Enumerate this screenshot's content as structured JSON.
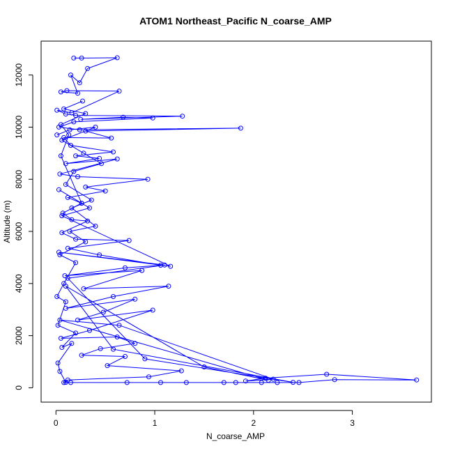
{
  "chart_data": {
    "type": "line",
    "title": "ATOM1 Northeast_Pacific N_coarse_AMP",
    "xlabel": "N_coarse_AMP",
    "ylabel": "Altitude (m)",
    "xlim": [
      -0.15,
      3.8
    ],
    "ylim": [
      -550,
      13300
    ],
    "x_ticks": [
      0,
      1,
      2,
      3
    ],
    "x_tick_labels": [
      "0",
      "1",
      "2",
      "3"
    ],
    "y_ticks": [
      0,
      2000,
      4000,
      6000,
      8000,
      10000,
      12000
    ],
    "y_tick_labels": [
      "0",
      "2000",
      "4000",
      "6000",
      "8000",
      "10000",
      "12000"
    ],
    "grid": false,
    "legend": "none",
    "colors": {
      "series": "#0000ff",
      "frame": "#000000",
      "background": "#ffffff"
    },
    "series": [
      {
        "points": [
          {
            "x": 0.18,
            "y": 12650
          },
          {
            "x": 0.26,
            "y": 12650
          },
          {
            "x": 0.62,
            "y": 12660
          },
          {
            "x": 0.32,
            "y": 12250
          },
          {
            "x": 0.24,
            "y": 11700
          },
          {
            "x": 0.15,
            "y": 12000
          },
          {
            "x": 0.22,
            "y": 11300
          },
          {
            "x": 0.05,
            "y": 11350
          },
          {
            "x": 0.11,
            "y": 11400
          },
          {
            "x": 0.64,
            "y": 11380
          },
          {
            "x": 0.16,
            "y": 10550
          },
          {
            "x": 0.01,
            "y": 10650
          },
          {
            "x": 0.1,
            "y": 10500
          },
          {
            "x": 0.2,
            "y": 10450
          },
          {
            "x": 1.28,
            "y": 10420
          },
          {
            "x": 0.25,
            "y": 10300
          },
          {
            "x": 0.68,
            "y": 10380
          },
          {
            "x": 0.98,
            "y": 10350
          },
          {
            "x": 0.18,
            "y": 10200
          },
          {
            "x": 0.03,
            "y": 10000
          },
          {
            "x": 0.24,
            "y": 9900
          },
          {
            "x": 1.87,
            "y": 9960
          },
          {
            "x": 0.3,
            "y": 9850
          },
          {
            "x": 0.56,
            "y": 9580
          },
          {
            "x": 0.08,
            "y": 9600
          },
          {
            "x": 0.15,
            "y": 9300
          },
          {
            "x": 0.58,
            "y": 9050
          },
          {
            "x": 0.2,
            "y": 8900
          },
          {
            "x": 0.44,
            "y": 8800
          },
          {
            "x": 0.1,
            "y": 8600
          },
          {
            "x": 0.62,
            "y": 8780
          },
          {
            "x": 0.04,
            "y": 8200
          },
          {
            "x": 0.22,
            "y": 8100
          },
          {
            "x": 0.93,
            "y": 8000
          },
          {
            "x": 0.3,
            "y": 7700
          },
          {
            "x": 0.5,
            "y": 7550
          },
          {
            "x": 0.12,
            "y": 7300
          },
          {
            "x": 0.26,
            "y": 7080
          },
          {
            "x": 0.07,
            "y": 6700
          },
          {
            "x": 0.16,
            "y": 6450
          },
          {
            "x": 0.32,
            "y": 6400
          },
          {
            "x": 0.06,
            "y": 5950
          },
          {
            "x": 0.2,
            "y": 5700
          },
          {
            "x": 0.74,
            "y": 5650
          },
          {
            "x": 0.12,
            "y": 5350
          },
          {
            "x": 0.44,
            "y": 5100
          },
          {
            "x": 1.06,
            "y": 4700
          },
          {
            "x": 0.7,
            "y": 4600
          },
          {
            "x": 0.09,
            "y": 4300
          },
          {
            "x": 0.87,
            "y": 4500
          },
          {
            "x": 0.28,
            "y": 3800
          },
          {
            "x": 1.14,
            "y": 3900
          },
          {
            "x": 0.58,
            "y": 3500
          },
          {
            "x": 0.1,
            "y": 3050
          },
          {
            "x": 0.8,
            "y": 3400
          },
          {
            "x": 0.48,
            "y": 2900
          },
          {
            "x": 0.22,
            "y": 2600
          },
          {
            "x": 0.98,
            "y": 2980
          },
          {
            "x": 0.34,
            "y": 2200
          },
          {
            "x": 0.05,
            "y": 1900
          },
          {
            "x": 0.62,
            "y": 1950
          },
          {
            "x": 0.8,
            "y": 1700
          },
          {
            "x": 0.45,
            "y": 1500
          },
          {
            "x": 0.26,
            "y": 1250
          },
          {
            "x": 0.7,
            "y": 1200
          },
          {
            "x": 0.52,
            "y": 850
          },
          {
            "x": 1.27,
            "y": 650
          },
          {
            "x": 0.94,
            "y": 420
          },
          {
            "x": 0.12,
            "y": 300
          },
          {
            "x": 0.08,
            "y": 200
          },
          {
            "x": 0.15,
            "y": 200
          },
          {
            "x": 0.72,
            "y": 200
          },
          {
            "x": 1.06,
            "y": 200
          },
          {
            "x": 1.32,
            "y": 200
          },
          {
            "x": 1.7,
            "y": 200
          },
          {
            "x": 1.82,
            "y": 200
          },
          {
            "x": 2.08,
            "y": 200
          },
          {
            "x": 2.24,
            "y": 200
          },
          {
            "x": 2.46,
            "y": 200
          },
          {
            "x": 2.82,
            "y": 310
          },
          {
            "x": 3.65,
            "y": 300
          },
          {
            "x": 2.74,
            "y": 520
          },
          {
            "x": 2.12,
            "y": 370
          },
          {
            "x": 1.92,
            "y": 260
          },
          {
            "x": 2.2,
            "y": 330
          },
          {
            "x": 0.64,
            "y": 2400
          },
          {
            "x": 0.04,
            "y": 2600
          },
          {
            "x": 2.15,
            "y": 290
          },
          {
            "x": 1.5,
            "y": 800
          },
          {
            "x": 0.1,
            "y": 3900
          },
          {
            "x": 0.58,
            "y": 1480
          },
          {
            "x": 2.4,
            "y": 210
          },
          {
            "x": 0.9,
            "y": 1110
          },
          {
            "x": 0.12,
            "y": 4200
          },
          {
            "x": 1.1,
            "y": 4710
          },
          {
            "x": 0.03,
            "y": 5200
          },
          {
            "x": 1.16,
            "y": 4660
          },
          {
            "x": 0.06,
            "y": 6600
          },
          {
            "x": 0.34,
            "y": 6900
          },
          {
            "x": 0.03,
            "y": 7600
          },
          {
            "x": 0.26,
            "y": 7080
          },
          {
            "x": 0.05,
            "y": 8900
          },
          {
            "x": 0.13,
            "y": 9700
          },
          {
            "x": 0.05,
            "y": 10100
          },
          {
            "x": 0.3,
            "y": 10520
          },
          {
            "x": 0.08,
            "y": 10700
          },
          {
            "x": 0.27,
            "y": 11000
          }
        ]
      },
      {
        "points": [
          {
            "x": 0.01,
            "y": 9700
          },
          {
            "x": 0.14,
            "y": 9900
          },
          {
            "x": 0.4,
            "y": 10000
          },
          {
            "x": 0.06,
            "y": 9500
          },
          {
            "x": 0.28,
            "y": 9000
          },
          {
            "x": 0.46,
            "y": 8600
          },
          {
            "x": 0.18,
            "y": 8300
          },
          {
            "x": 0.1,
            "y": 7800
          },
          {
            "x": 0.36,
            "y": 7200
          },
          {
            "x": 0.16,
            "y": 6900
          },
          {
            "x": 0.4,
            "y": 6200
          },
          {
            "x": 0.14,
            "y": 6000
          },
          {
            "x": 0.3,
            "y": 5600
          },
          {
            "x": 0.04,
            "y": 5100
          },
          {
            "x": 0.2,
            "y": 4800
          },
          {
            "x": 0.08,
            "y": 4000
          },
          {
            "x": 0.01,
            "y": 3500
          },
          {
            "x": 0.1,
            "y": 3300
          },
          {
            "x": 0.02,
            "y": 2400
          },
          {
            "x": 0.2,
            "y": 2100
          },
          {
            "x": 0.06,
            "y": 1550
          },
          {
            "x": 0.16,
            "y": 1700
          },
          {
            "x": 0.02,
            "y": 950
          },
          {
            "x": 0.04,
            "y": 630
          },
          {
            "x": 0.1,
            "y": 210
          }
        ]
      }
    ]
  }
}
